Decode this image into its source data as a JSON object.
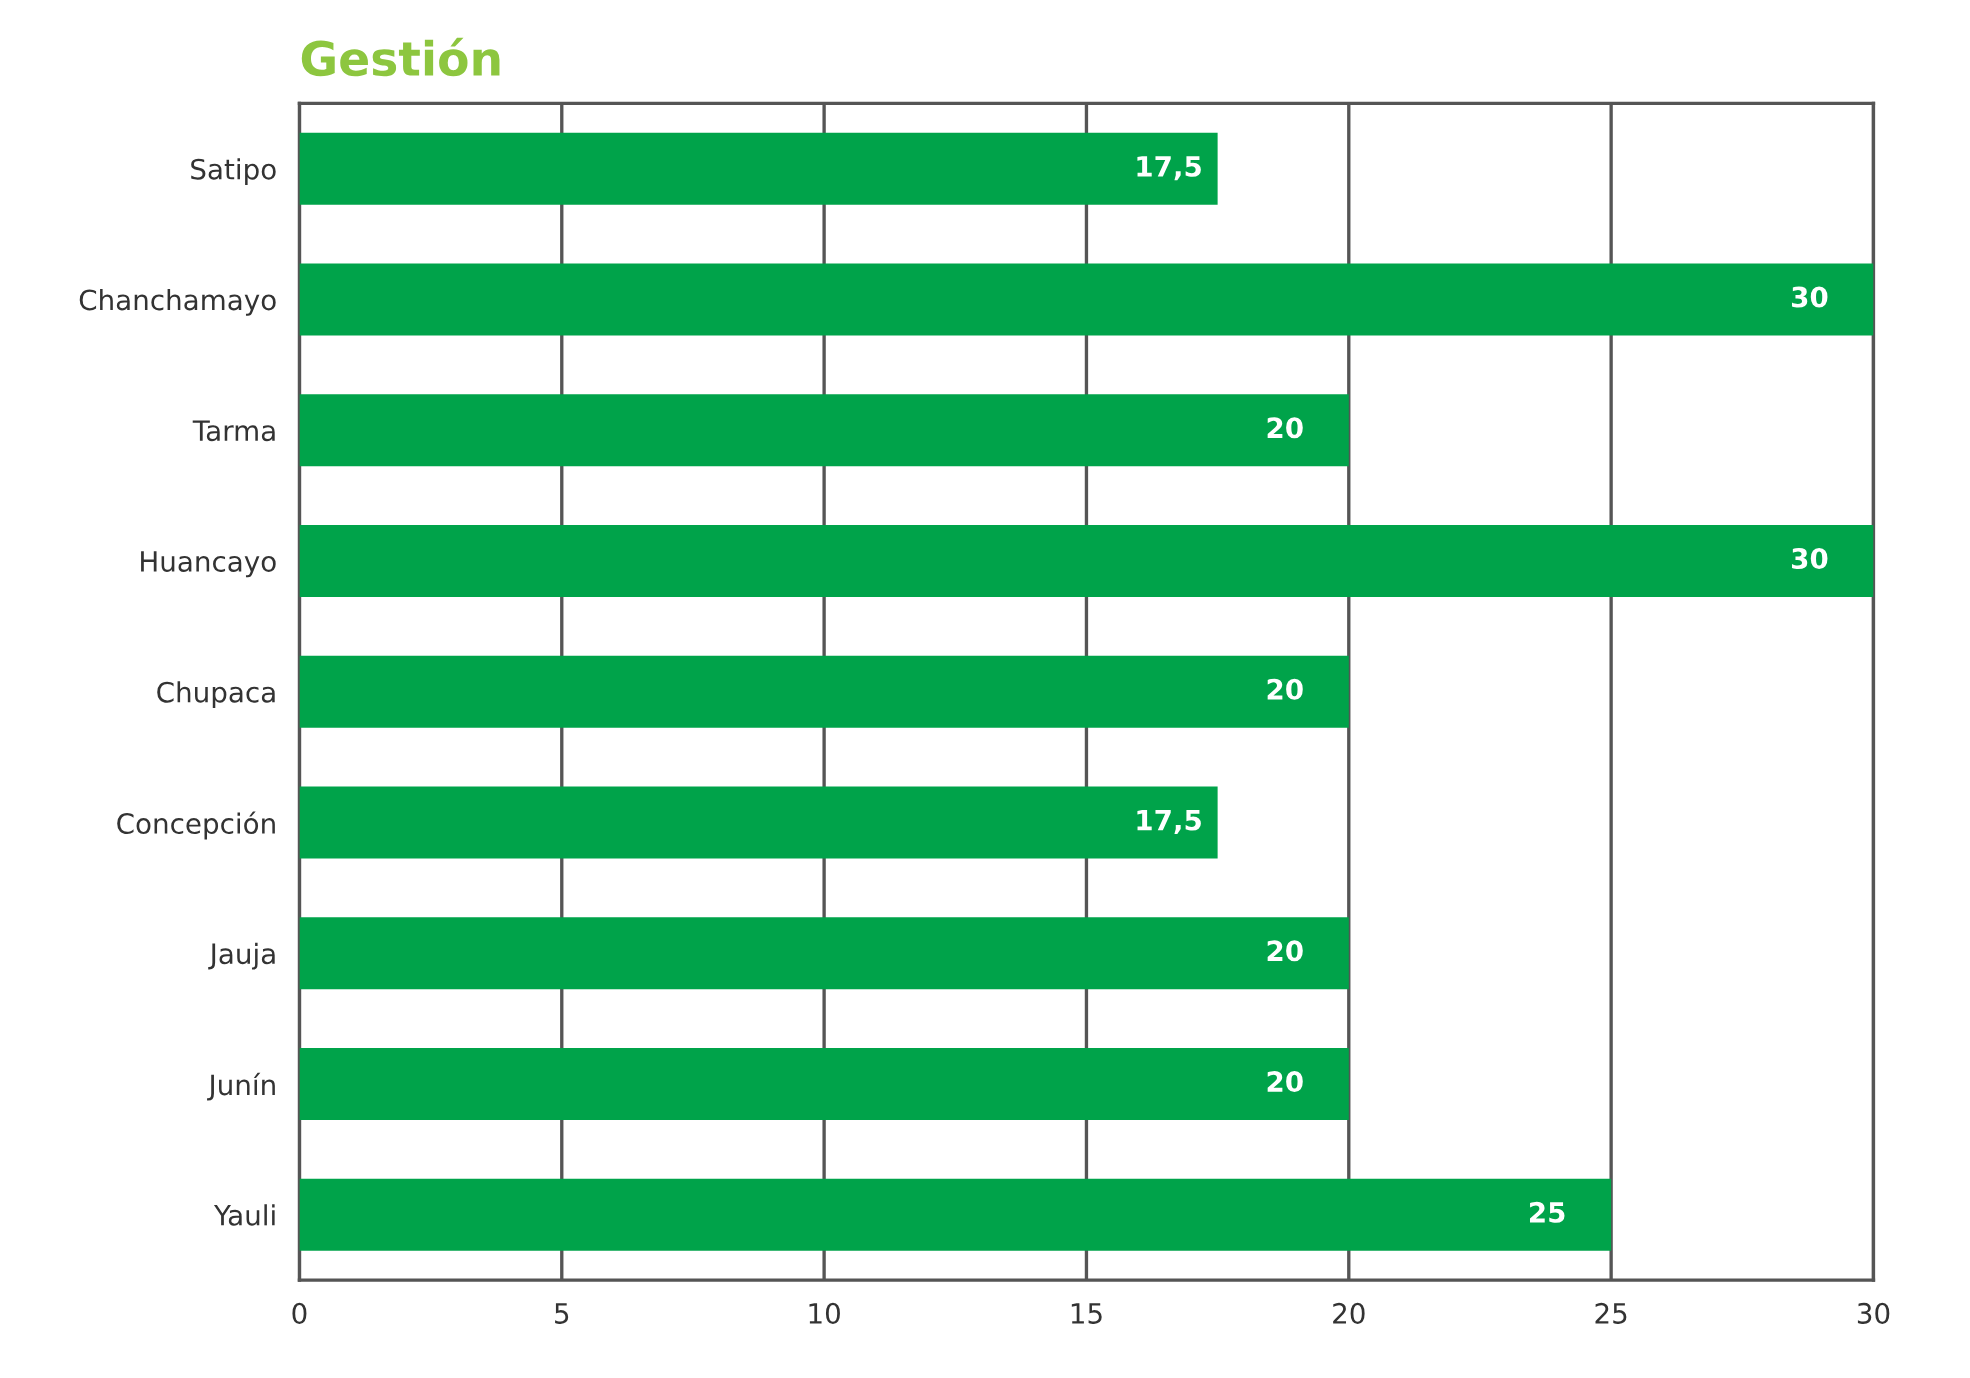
{
  "chart_data": {
    "type": "bar",
    "orientation": "horizontal",
    "title": "Gestión",
    "categories": [
      "Satipo",
      "Chanchamayo",
      "Tarma",
      "Huancayo",
      "Chupaca",
      "Concepción",
      "Jauja",
      "Junín",
      "Yauli"
    ],
    "values": [
      17.5,
      30,
      20,
      30,
      20,
      17.5,
      20,
      20,
      25
    ],
    "value_labels": [
      "17,5",
      "30",
      "20",
      "30",
      "20",
      "17,5",
      "20",
      "20",
      "25"
    ],
    "color": "#00a34a",
    "xlim": [
      0,
      30
    ],
    "xticks": [
      0,
      5,
      10,
      15,
      20,
      25,
      30
    ],
    "grid": "x"
  }
}
